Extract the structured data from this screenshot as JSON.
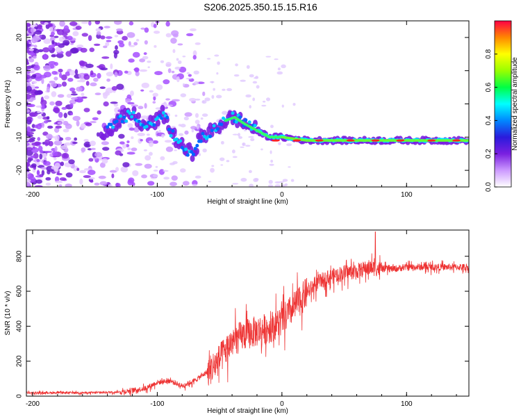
{
  "page": {
    "title": "S206.2025.350.15.15.R16"
  },
  "chart_data": [
    {
      "type": "heatmap",
      "title": "S206.2025.350.15.15.R16",
      "xlabel": "Height of straight line (km)",
      "ylabel": "Frequency (Hz)",
      "xlim": [
        -205,
        150
      ],
      "ylim": [
        -25,
        25
      ],
      "xticks": [
        -200,
        -100,
        0,
        100
      ],
      "yticks": [
        -20,
        -10,
        0,
        10,
        20
      ],
      "colorbar": {
        "label": "Normalized spectral amplitude",
        "range": [
          0.0,
          1.0
        ],
        "ticks": [
          "0.0",
          "0.2",
          "0.4",
          "0.6",
          "0.8"
        ],
        "colors": [
          "#ffffff",
          "#cc99ff",
          "#7a1fe0",
          "#2a1bdc",
          "#0088ff",
          "#00ffff",
          "#00ff44",
          "#99ff00",
          "#ffff00",
          "#ff8800",
          "#ff0044"
        ]
      },
      "ridge": {
        "description_points": [
          {
            "x": -140,
            "f": -8
          },
          {
            "x": -130,
            "f": -5
          },
          {
            "x": -120,
            "f": -3
          },
          {
            "x": -110,
            "f": -7
          },
          {
            "x": -100,
            "f": -5
          },
          {
            "x": -95,
            "f": -3
          },
          {
            "x": -88,
            "f": -9
          },
          {
            "x": -80,
            "f": -13
          },
          {
            "x": -72,
            "f": -15
          },
          {
            "x": -65,
            "f": -10
          },
          {
            "x": -55,
            "f": -8
          },
          {
            "x": -45,
            "f": -5
          },
          {
            "x": -38,
            "f": -4
          },
          {
            "x": -30,
            "f": -6
          },
          {
            "x": -20,
            "f": -8
          },
          {
            "x": -10,
            "f": -10
          },
          {
            "x": 0,
            "f": -10
          },
          {
            "x": 20,
            "f": -11
          },
          {
            "x": 60,
            "f": -11
          },
          {
            "x": 100,
            "f": -11
          },
          {
            "x": 150,
            "f": -11
          }
        ]
      }
    },
    {
      "type": "line",
      "title": "",
      "xlabel": "Height of straight line (km)",
      "ylabel": "SNR (10 * v/v)",
      "xlim": [
        -205,
        150
      ],
      "ylim": [
        0,
        950
      ],
      "xticks": [
        -200,
        -100,
        0,
        100
      ],
      "yticks": [
        0,
        200,
        400,
        600,
        800
      ],
      "color": "#ee3333",
      "envelope": [
        {
          "x": -205,
          "y": 20
        },
        {
          "x": -150,
          "y": 20
        },
        {
          "x": -130,
          "y": 25
        },
        {
          "x": -110,
          "y": 45
        },
        {
          "x": -100,
          "y": 80
        },
        {
          "x": -90,
          "y": 90
        },
        {
          "x": -80,
          "y": 60
        },
        {
          "x": -70,
          "y": 90
        },
        {
          "x": -60,
          "y": 140
        },
        {
          "x": -50,
          "y": 220
        },
        {
          "x": -40,
          "y": 320
        },
        {
          "x": -30,
          "y": 360
        },
        {
          "x": -20,
          "y": 380
        },
        {
          "x": -10,
          "y": 400
        },
        {
          "x": 0,
          "y": 440
        },
        {
          "x": 10,
          "y": 520
        },
        {
          "x": 20,
          "y": 600
        },
        {
          "x": 30,
          "y": 660
        },
        {
          "x": 40,
          "y": 690
        },
        {
          "x": 50,
          "y": 710
        },
        {
          "x": 60,
          "y": 720
        },
        {
          "x": 70,
          "y": 740
        },
        {
          "x": 80,
          "y": 730
        },
        {
          "x": 90,
          "y": 730
        },
        {
          "x": 100,
          "y": 740
        },
        {
          "x": 120,
          "y": 740
        },
        {
          "x": 150,
          "y": 740
        }
      ],
      "peak": {
        "x": 75,
        "y": 940
      }
    }
  ]
}
